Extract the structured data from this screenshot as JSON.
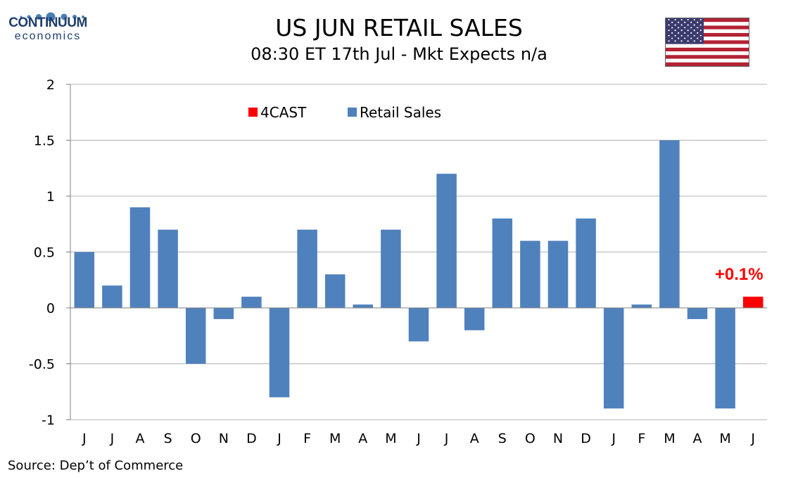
{
  "header": {
    "title": "US JUN RETAIL SALES",
    "subtitle": "08:30 ET 17th Jul - Mkt Expects n/a"
  },
  "logo": {
    "wordmark": "CONTINUUM",
    "sub": "economics",
    "color": "#1f3e6b"
  },
  "flag": {
    "icon": "us-flag-icon"
  },
  "source": "Source: Dep’t of Commerce",
  "chart_data": {
    "type": "bar",
    "title": "US JUN RETAIL SALES",
    "subtitle": "08:30 ET 17th Jul - Mkt Expects n/a",
    "xlabel": "",
    "ylabel": "",
    "categories": [
      "J",
      "J",
      "A",
      "S",
      "O",
      "N",
      "D",
      "J",
      "F",
      "M",
      "A",
      "M",
      "J",
      "J",
      "A",
      "S",
      "O",
      "N",
      "D",
      "J",
      "F",
      "M",
      "A",
      "M",
      "J"
    ],
    "series": [
      {
        "name": "Retail Sales",
        "color": "#4f81bd",
        "values": [
          0.5,
          0.2,
          0.9,
          0.7,
          -0.5,
          -0.1,
          0.1,
          -0.8,
          0.7,
          0.3,
          0.03,
          0.7,
          -0.3,
          1.2,
          -0.2,
          0.8,
          0.6,
          0.6,
          0.8,
          -0.9,
          0.03,
          1.5,
          -0.1,
          -0.9,
          null
        ]
      },
      {
        "name": "4CAST",
        "color": "#ff0000",
        "values": [
          null,
          null,
          null,
          null,
          null,
          null,
          null,
          null,
          null,
          null,
          null,
          null,
          null,
          null,
          null,
          null,
          null,
          null,
          null,
          null,
          null,
          null,
          null,
          null,
          0.1
        ]
      }
    ],
    "legend": [
      {
        "name": "4CAST",
        "color": "#ff0000"
      },
      {
        "name": "Retail Sales",
        "color": "#4f81bd"
      }
    ],
    "legend_position": "top-left",
    "annotation": {
      "text": "+0.1%",
      "color": "#ff0000",
      "category_index": 24
    },
    "ylim": [
      -1,
      2
    ],
    "yticks": [
      -1,
      -0.5,
      0,
      0.5,
      1,
      1.5,
      2
    ],
    "ytick_labels": [
      "-1",
      "-0.5",
      "0",
      "0.5",
      "1",
      "1.5",
      "2"
    ],
    "grid": true
  }
}
